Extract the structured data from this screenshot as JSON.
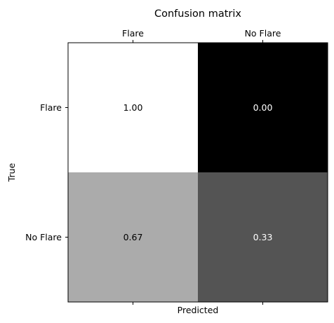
{
  "chart_data": {
    "type": "heatmap",
    "title": "Confusion matrix",
    "xlabel": "Predicted",
    "ylabel": "True",
    "x_categories": [
      "Flare",
      "No Flare"
    ],
    "y_categories": [
      "Flare",
      "No Flare"
    ],
    "values": [
      [
        1.0,
        0.0
      ],
      [
        0.67,
        0.33
      ]
    ],
    "value_format": "0.00",
    "colormap": "grayscale (0 = black, 1 = white)",
    "x_tick_position": "top",
    "grid": false
  }
}
